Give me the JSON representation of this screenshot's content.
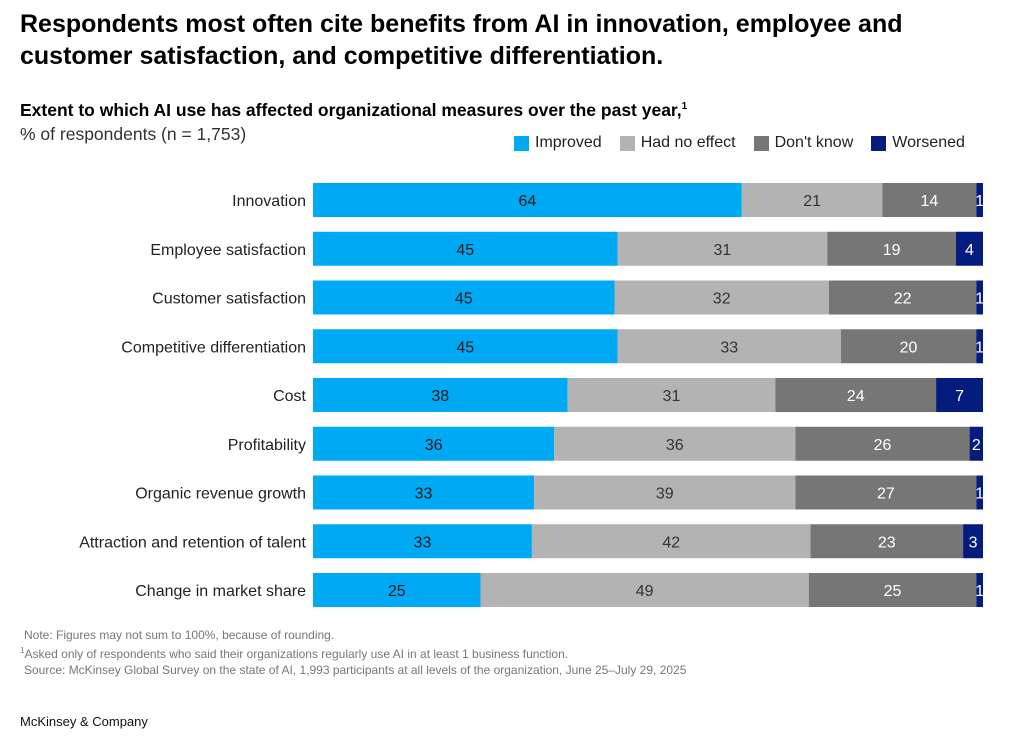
{
  "title": "Respondents most often cite benefits from AI in innovation, employee and customer satisfaction, and competitive differentiation.",
  "chart_data": {
    "type": "bar",
    "orientation": "horizontal",
    "stacked": true,
    "title": "Extent to which AI use has affected organizational measures over the past year,",
    "title_footnote": "1",
    "ylabel": "% of respondents (n = 1,753)",
    "categories": [
      "Innovation",
      "Employee satisfaction",
      "Customer satisfaction",
      "Competitive differentiation",
      "Cost",
      "Profitability",
      "Organic revenue growth",
      "Attraction and retention of talent",
      "Change in market share"
    ],
    "series": [
      {
        "name": "Improved",
        "color": "#00a9f4",
        "label_color": "#1a1a1a",
        "values": [
          64,
          45,
          45,
          45,
          38,
          36,
          33,
          33,
          25
        ]
      },
      {
        "name": "Had no effect",
        "color": "#b3b3b3",
        "label_color": "#333333",
        "values": [
          21,
          31,
          32,
          33,
          31,
          36,
          39,
          42,
          49
        ]
      },
      {
        "name": "Don't know",
        "color": "#767676",
        "label_color": "#ffffff",
        "values": [
          14,
          19,
          22,
          20,
          24,
          26,
          27,
          23,
          25
        ]
      },
      {
        "name": "Worsened",
        "color": "#051c7f",
        "label_color": "#ffffff",
        "values": [
          1,
          4,
          1,
          1,
          7,
          2,
          1,
          3,
          1
        ]
      }
    ],
    "legend_position": "top-right",
    "grid": false
  },
  "notes": {
    "note": "Note: Figures may not sum to 100%, because of rounding.",
    "footnote_mark": "1",
    "footnote": "Asked only of respondents who said their organizations regularly use AI in at least 1 business function.",
    "source": "Source: McKinsey Global Survey on the state of AI, 1,993 participants at all levels of the organization, June 25–July 29, 2025"
  },
  "brand": "McKinsey & Company"
}
